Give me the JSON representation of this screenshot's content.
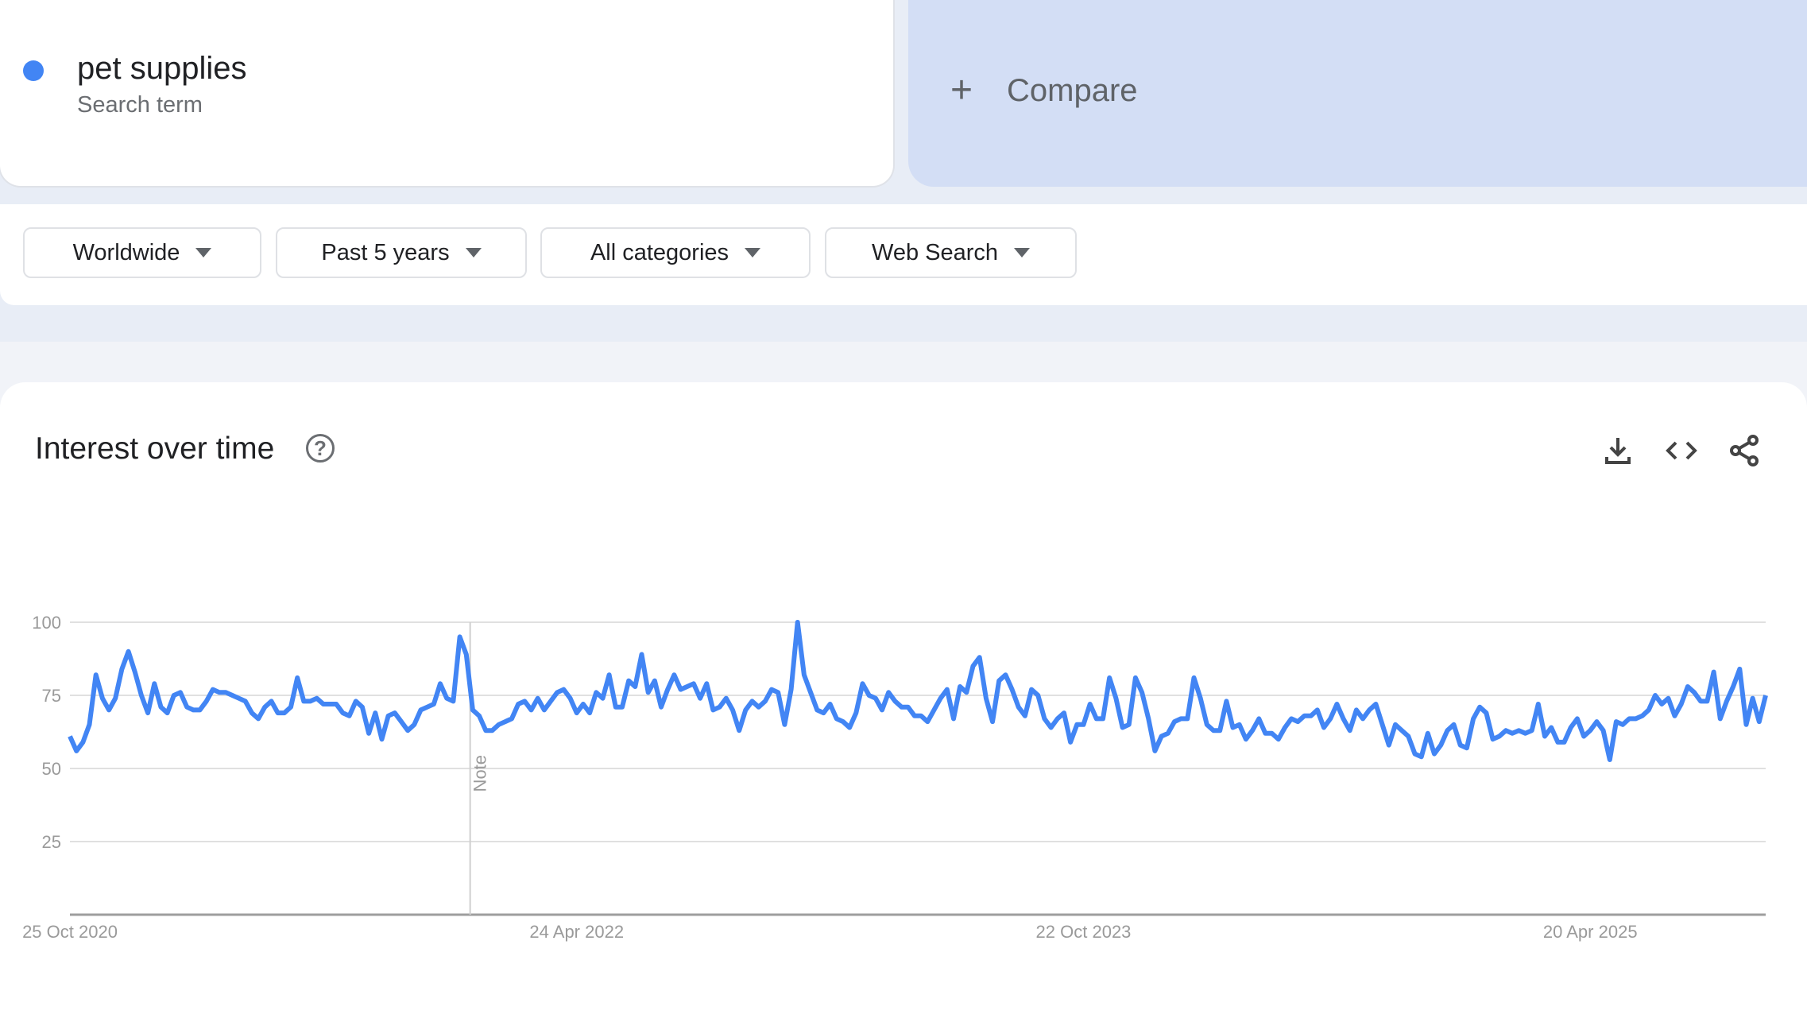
{
  "search_term": {
    "label": "pet supplies",
    "sublabel": "Search term",
    "color": "#4285f4"
  },
  "compare": {
    "icon": "plus-icon",
    "label": "Compare"
  },
  "filters": [
    {
      "label": "Worldwide"
    },
    {
      "label": "Past 5 years"
    },
    {
      "label": "All categories"
    },
    {
      "label": "Web Search"
    }
  ],
  "widget": {
    "title": "Interest over time",
    "help_icon": "help-circle-icon",
    "actions": [
      "download-icon",
      "embed-code-icon",
      "share-icon"
    ]
  },
  "chart_data": {
    "type": "line",
    "series": [
      {
        "name": "pet supplies",
        "color": "#4285f4",
        "values": [
          61,
          56,
          59,
          65,
          82,
          74,
          70,
          74,
          84,
          90,
          83,
          75,
          69,
          79,
          71,
          69,
          75,
          76,
          71,
          70,
          70,
          73,
          77,
          76,
          76,
          75,
          74,
          73,
          69,
          67,
          71,
          73,
          69,
          69,
          71,
          81,
          73,
          73,
          74,
          72,
          72,
          72,
          69,
          68,
          73,
          71,
          62,
          69,
          60,
          68,
          69,
          66,
          63,
          65,
          70,
          71,
          72,
          79,
          74,
          73,
          95,
          89,
          70,
          68,
          63,
          63,
          65,
          66,
          67,
          72,
          73,
          70,
          74,
          70,
          73,
          76,
          77,
          74,
          69,
          72,
          69,
          76,
          74,
          82,
          71,
          71,
          80,
          78,
          89,
          76,
          80,
          71,
          77,
          82,
          77,
          78,
          79,
          74,
          79,
          70,
          71,
          74,
          70,
          63,
          70,
          73,
          71,
          73,
          77,
          76,
          65,
          77,
          100,
          82,
          76,
          70,
          69,
          72,
          67,
          66,
          64,
          69,
          79,
          75,
          74,
          70,
          76,
          73,
          71,
          71,
          68,
          68,
          66,
          70,
          74,
          77,
          67,
          78,
          76,
          85,
          88,
          74,
          66,
          80,
          82,
          77,
          71,
          68,
          77,
          75,
          67,
          64,
          67,
          69,
          59,
          65,
          65,
          72,
          67,
          67,
          81,
          74,
          64,
          65,
          81,
          76,
          67,
          56,
          61,
          62,
          66,
          67,
          67,
          81,
          74,
          65,
          63,
          63,
          73,
          64,
          65,
          60,
          63,
          67,
          62,
          62,
          60,
          64,
          67,
          66,
          68,
          68,
          70,
          64,
          67,
          72,
          67,
          63,
          70,
          67,
          70,
          72,
          65,
          58,
          65,
          63,
          61,
          55,
          54,
          62,
          55,
          58,
          63,
          65,
          58,
          57,
          67,
          71,
          69,
          60,
          61,
          63,
          62,
          63,
          62,
          63,
          72,
          61,
          64,
          59,
          59,
          64,
          67,
          61,
          63,
          66,
          63,
          53,
          66,
          65,
          67,
          67,
          68,
          70,
          75,
          72,
          74,
          68,
          72,
          78,
          76,
          73,
          73,
          83,
          67,
          73,
          78,
          84,
          65,
          74,
          66,
          75
        ]
      }
    ],
    "x_tick_labels": [
      "25 Oct 2020",
      "24 Apr 2022",
      "22 Oct 2023",
      "20 Apr 2025"
    ],
    "y_ticks": [
      25,
      50,
      75,
      100
    ],
    "ylim": [
      0,
      100
    ],
    "annotation": "Note",
    "grid": true,
    "legend": "none"
  }
}
